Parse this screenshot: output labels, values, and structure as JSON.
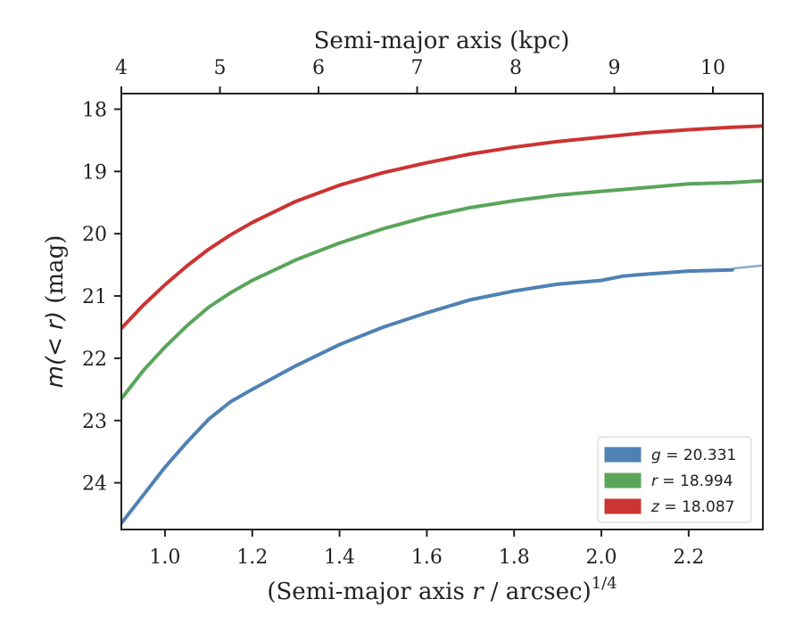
{
  "chart_data": {
    "type": "line",
    "xlabel_main": "(Semi-major axis ",
    "xlabel_var": "r",
    "xlabel_tail": " / arcsec)",
    "xlabel_sup": "1/4",
    "xlabel_top": "Semi-major axis (kpc)",
    "ylabel_prefix": "m(< r)",
    "ylabel_suffix": " (mag)",
    "xlim": [
      0.9,
      2.37
    ],
    "ylim": [
      17.75,
      24.75
    ],
    "y_inverted": true,
    "x_ticks": [
      1.0,
      1.2,
      1.4,
      1.6,
      1.8,
      2.0,
      2.2
    ],
    "x_tick_labels": [
      "1.0",
      "1.2",
      "1.4",
      "1.6",
      "1.8",
      "2.0",
      "2.2"
    ],
    "y_ticks": [
      18,
      19,
      20,
      21,
      22,
      23,
      24
    ],
    "y_tick_labels": [
      "18",
      "19",
      "20",
      "21",
      "22",
      "23",
      "24"
    ],
    "top_ticks_kpc": [
      4,
      5,
      6,
      7,
      8,
      9,
      10
    ],
    "top_tick_labels": [
      "4",
      "5",
      "6",
      "7",
      "8",
      "9",
      "10"
    ],
    "legend_position": "lower-right",
    "series": [
      {
        "name": "g = 20.331",
        "band": "g",
        "value": "20.331",
        "color": "#4f81b3",
        "x": [
          0.9,
          0.95,
          1.0,
          1.05,
          1.1,
          1.15,
          1.2,
          1.3,
          1.4,
          1.5,
          1.6,
          1.7,
          1.8,
          1.9,
          2.0,
          2.05,
          2.1,
          2.2,
          2.3
        ],
        "y": [
          24.65,
          24.2,
          23.75,
          23.35,
          22.98,
          22.7,
          22.5,
          22.12,
          21.78,
          21.5,
          21.27,
          21.06,
          20.92,
          20.81,
          20.75,
          20.68,
          20.65,
          20.6,
          20.58
        ],
        "extension_x": [
          2.3,
          2.37
        ],
        "extension_y": [
          20.56,
          20.51
        ]
      },
      {
        "name": "r = 18.994",
        "band": "r",
        "value": "18.994",
        "color": "#5aa55a",
        "x": [
          0.9,
          0.95,
          1.0,
          1.05,
          1.1,
          1.15,
          1.2,
          1.3,
          1.4,
          1.5,
          1.6,
          1.7,
          1.8,
          1.9,
          2.0,
          2.1,
          2.2,
          2.3,
          2.37
        ],
        "y": [
          22.65,
          22.2,
          21.82,
          21.48,
          21.18,
          20.95,
          20.75,
          20.42,
          20.15,
          19.92,
          19.73,
          19.58,
          19.47,
          19.38,
          19.32,
          19.26,
          19.2,
          19.18,
          19.15
        ]
      },
      {
        "name": "z = 18.087",
        "band": "z",
        "value": "18.087",
        "color": "#cc3333",
        "x": [
          0.9,
          0.95,
          1.0,
          1.05,
          1.1,
          1.15,
          1.2,
          1.3,
          1.4,
          1.5,
          1.6,
          1.7,
          1.8,
          1.9,
          2.0,
          2.1,
          2.2,
          2.3,
          2.37
        ],
        "y": [
          21.52,
          21.15,
          20.82,
          20.52,
          20.25,
          20.02,
          19.82,
          19.48,
          19.22,
          19.02,
          18.86,
          18.72,
          18.61,
          18.52,
          18.45,
          18.38,
          18.33,
          18.29,
          18.27
        ]
      }
    ]
  }
}
